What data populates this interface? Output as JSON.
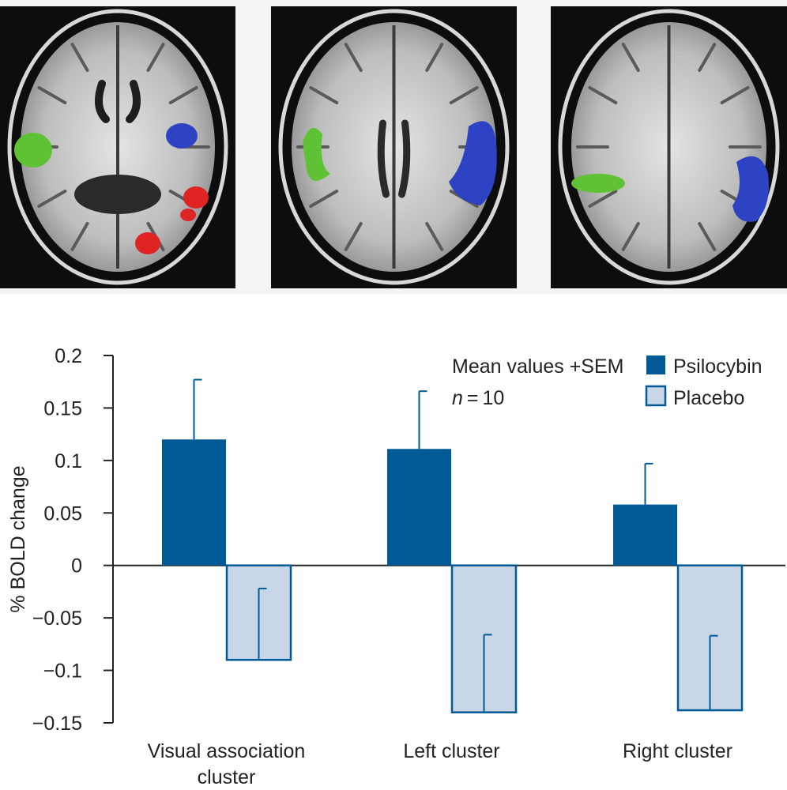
{
  "brain_panels": [
    {
      "name": "axial-slice-1",
      "clusters": [
        "green",
        "blue",
        "red"
      ]
    },
    {
      "name": "axial-slice-2",
      "clusters": [
        "green",
        "blue"
      ]
    },
    {
      "name": "axial-slice-3",
      "clusters": [
        "green",
        "blue"
      ]
    }
  ],
  "colors": {
    "psilocybin": "#005a96",
    "placebo_fill": "#c9d6e8",
    "placebo_stroke": "#005a96",
    "cluster_green": "#5fc235",
    "cluster_blue": "#2d43c4",
    "cluster_red": "#e02323"
  },
  "chart_data": {
    "type": "bar",
    "ylabel": "% BOLD change",
    "ylim": [
      -0.15,
      0.2
    ],
    "yticks": [
      0.2,
      0.15,
      0.1,
      0.05,
      0,
      -0.05,
      -0.1,
      -0.15
    ],
    "ytick_labels": [
      "0.2",
      "0.15",
      "0.1",
      "0.05",
      "0",
      "−0.05",
      "−0.1",
      "−0.15"
    ],
    "categories": [
      [
        "Visual association",
        "cluster"
      ],
      [
        "Left cluster"
      ],
      [
        "Right cluster"
      ]
    ],
    "series": [
      {
        "name": "Psilocybin",
        "values": [
          0.12,
          0.111,
          0.058
        ],
        "errors": [
          0.057,
          0.055,
          0.039
        ]
      },
      {
        "name": "Placebo",
        "values": [
          -0.09,
          -0.14,
          -0.138
        ],
        "errors": [
          0.068,
          0.074,
          0.071
        ]
      }
    ],
    "annotation": {
      "line1": "Mean values +SEM",
      "line2_italic": "n",
      "line2_rest": " = 10"
    },
    "legend_position": "top-right"
  }
}
